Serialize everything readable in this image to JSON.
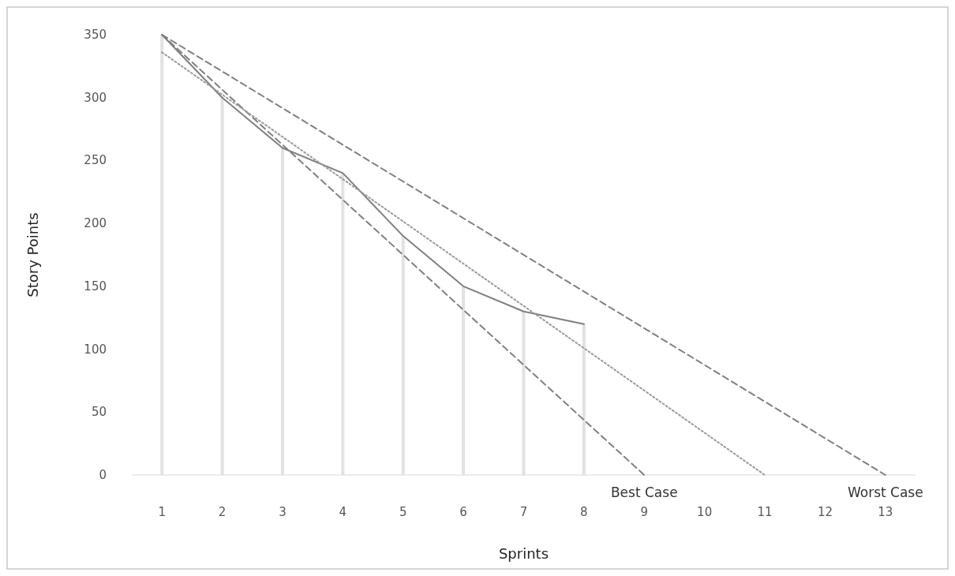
{
  "chart_data": {
    "type": "line",
    "xlabel": "Sprints",
    "ylabel": "Story Points",
    "xlim": [
      0.5,
      13.5
    ],
    "xticks": [
      1,
      2,
      3,
      4,
      5,
      6,
      7,
      8,
      9,
      10,
      11,
      12,
      13
    ],
    "ylim": [
      0,
      350
    ],
    "yticks": [
      0,
      50,
      100,
      150,
      200,
      250,
      300,
      350
    ],
    "grid": false,
    "marker": "none",
    "series": [
      {
        "type": "bar",
        "color": "#e2e2e2",
        "x": [
          1,
          2,
          3,
          4,
          5,
          6,
          7,
          8
        ],
        "values": [
          350,
          300,
          260,
          240,
          190,
          150,
          130,
          120
        ]
      },
      {
        "color": "#7f7f7f",
        "line_style": "solid",
        "x": [
          1,
          2,
          3,
          4,
          5,
          6,
          7,
          8
        ],
        "values": [
          350,
          300,
          260,
          240,
          190,
          150,
          130,
          120
        ]
      },
      {
        "name": "Best Case",
        "color": "#808080",
        "line_style": "dashed",
        "x": [
          1,
          9
        ],
        "values": [
          350,
          0
        ]
      },
      {
        "name": "Worst Case",
        "color": "#808080",
        "line_style": "dashed",
        "x": [
          1,
          13
        ],
        "values": [
          350,
          0
        ]
      },
      {
        "color": "#9a9a9a",
        "line_style": "dotted",
        "x": [
          1,
          11
        ],
        "values": [
          336,
          0
        ]
      }
    ]
  }
}
